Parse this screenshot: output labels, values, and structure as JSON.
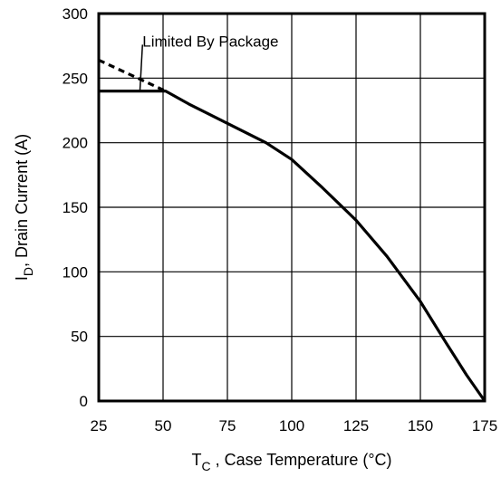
{
  "chart_data": {
    "type": "line",
    "title": "",
    "xlabel": {
      "main": "T",
      "sub": "C",
      "rest": " , Case Temperature (°C)"
    },
    "ylabel": {
      "main": "I",
      "sub": "D",
      "rest": ",  Drain Current (A)"
    },
    "xlim": [
      25,
      175
    ],
    "ylim": [
      0,
      300
    ],
    "xticks": [
      25,
      50,
      75,
      100,
      125,
      150,
      175
    ],
    "yticks": [
      0,
      50,
      100,
      150,
      200,
      250,
      300
    ],
    "grid": true,
    "series": [
      {
        "style": "solid",
        "points": [
          [
            25,
            240
          ],
          [
            51,
            240
          ],
          [
            60,
            230
          ],
          [
            75,
            215
          ],
          [
            90,
            200
          ],
          [
            100,
            187
          ],
          [
            112,
            165
          ],
          [
            125,
            140
          ],
          [
            137,
            112
          ],
          [
            150,
            77
          ],
          [
            160,
            45
          ],
          [
            168,
            20
          ],
          [
            175,
            0
          ]
        ]
      },
      {
        "style": "dashed",
        "points": [
          [
            25,
            264
          ],
          [
            51,
            240
          ]
        ]
      }
    ],
    "annotation": {
      "text": "Limited By Package",
      "arrow_from": [
        41,
        240
      ],
      "label_at": [
        42,
        278
      ]
    }
  }
}
